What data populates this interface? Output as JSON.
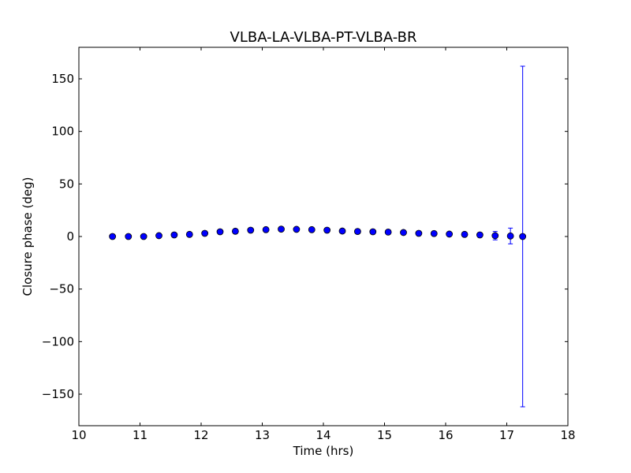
{
  "chart_data": {
    "type": "scatter",
    "title": "VLBA-LA-VLBA-PT-VLBA-BR",
    "xlabel": "Time (hrs)",
    "ylabel": "Closure phase (deg)",
    "xlim": [
      10,
      18
    ],
    "ylim": [
      -180,
      180
    ],
    "xticks": [
      10,
      11,
      12,
      13,
      14,
      15,
      16,
      17,
      18
    ],
    "xtick_labels": [
      "10",
      "11",
      "12",
      "13",
      "14",
      "15",
      "16",
      "17",
      "18"
    ],
    "yticks": [
      -150,
      -100,
      -50,
      0,
      50,
      100,
      150
    ],
    "ytick_labels": [
      "−150",
      "−100",
      "−50",
      "0",
      "50",
      "100",
      "150"
    ],
    "grid": false,
    "marker_color": "#0000ff",
    "errorbar_color": "#0000ff",
    "series": [
      {
        "points": [
          {
            "x": 10.55,
            "y": 0.0,
            "err": 0.3
          },
          {
            "x": 10.81,
            "y": 0.0,
            "err": 0.3
          },
          {
            "x": 11.06,
            "y": 0.0,
            "err": 0.3
          },
          {
            "x": 11.31,
            "y": 0.8,
            "err": 0.3
          },
          {
            "x": 11.56,
            "y": 1.5,
            "err": 0.3
          },
          {
            "x": 11.81,
            "y": 2.0,
            "err": 0.3
          },
          {
            "x": 12.06,
            "y": 3.0,
            "err": 0.3
          },
          {
            "x": 12.31,
            "y": 4.5,
            "err": 0.3
          },
          {
            "x": 12.56,
            "y": 5.0,
            "err": 0.3
          },
          {
            "x": 12.81,
            "y": 6.0,
            "err": 0.3
          },
          {
            "x": 13.06,
            "y": 6.5,
            "err": 0.3
          },
          {
            "x": 13.31,
            "y": 7.0,
            "err": 0.3
          },
          {
            "x": 13.56,
            "y": 6.8,
            "err": 0.3
          },
          {
            "x": 13.81,
            "y": 6.5,
            "err": 0.3
          },
          {
            "x": 14.06,
            "y": 6.0,
            "err": 0.3
          },
          {
            "x": 14.31,
            "y": 5.2,
            "err": 0.3
          },
          {
            "x": 14.56,
            "y": 4.8,
            "err": 0.3
          },
          {
            "x": 14.81,
            "y": 4.5,
            "err": 0.3
          },
          {
            "x": 15.06,
            "y": 4.2,
            "err": 0.3
          },
          {
            "x": 15.31,
            "y": 3.8,
            "err": 0.3
          },
          {
            "x": 15.56,
            "y": 3.0,
            "err": 0.3
          },
          {
            "x": 15.81,
            "y": 2.8,
            "err": 0.3
          },
          {
            "x": 16.06,
            "y": 2.3,
            "err": 0.4
          },
          {
            "x": 16.31,
            "y": 2.0,
            "err": 0.6
          },
          {
            "x": 16.56,
            "y": 1.5,
            "err": 1.5
          },
          {
            "x": 16.81,
            "y": 0.8,
            "err": 4.0
          },
          {
            "x": 17.06,
            "y": 0.5,
            "err": 7.5
          },
          {
            "x": 17.26,
            "y": 0.0,
            "err": 162.0
          }
        ]
      }
    ]
  }
}
